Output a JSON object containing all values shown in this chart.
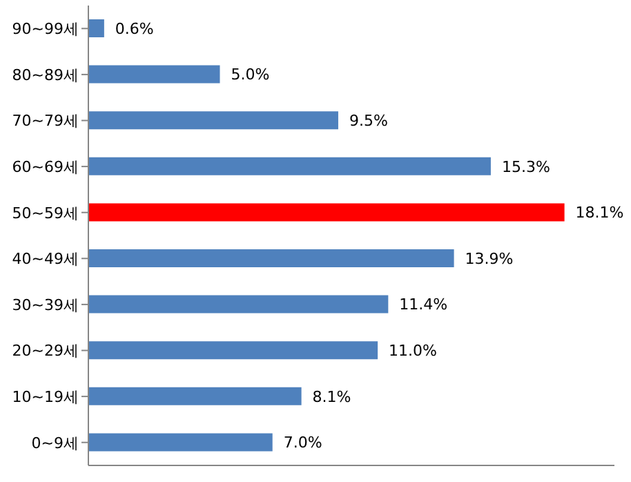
{
  "chart_data": {
    "type": "bar",
    "orientation": "horizontal",
    "categories": [
      "90~99세",
      "80~89세",
      "70~79세",
      "60~69세",
      "50~59세",
      "40~49세",
      "30~39세",
      "20~29세",
      "10~19세",
      "0~9세"
    ],
    "values": [
      0.6,
      5.0,
      9.5,
      15.3,
      18.1,
      13.9,
      11.4,
      11.0,
      8.1,
      7.0
    ],
    "value_labels": [
      "0.6%",
      "5.0%",
      "9.5%",
      "15.3%",
      "18.1%",
      "13.9%",
      "11.4%",
      "11.0%",
      "8.1%",
      "7.0%"
    ],
    "colors": [
      "#4f81bd",
      "#4f81bd",
      "#4f81bd",
      "#4f81bd",
      "#ff0000",
      "#4f81bd",
      "#4f81bd",
      "#4f81bd",
      "#4f81bd",
      "#4f81bd"
    ],
    "xlim": [
      0,
      20
    ],
    "tick_labels": "y"
  }
}
